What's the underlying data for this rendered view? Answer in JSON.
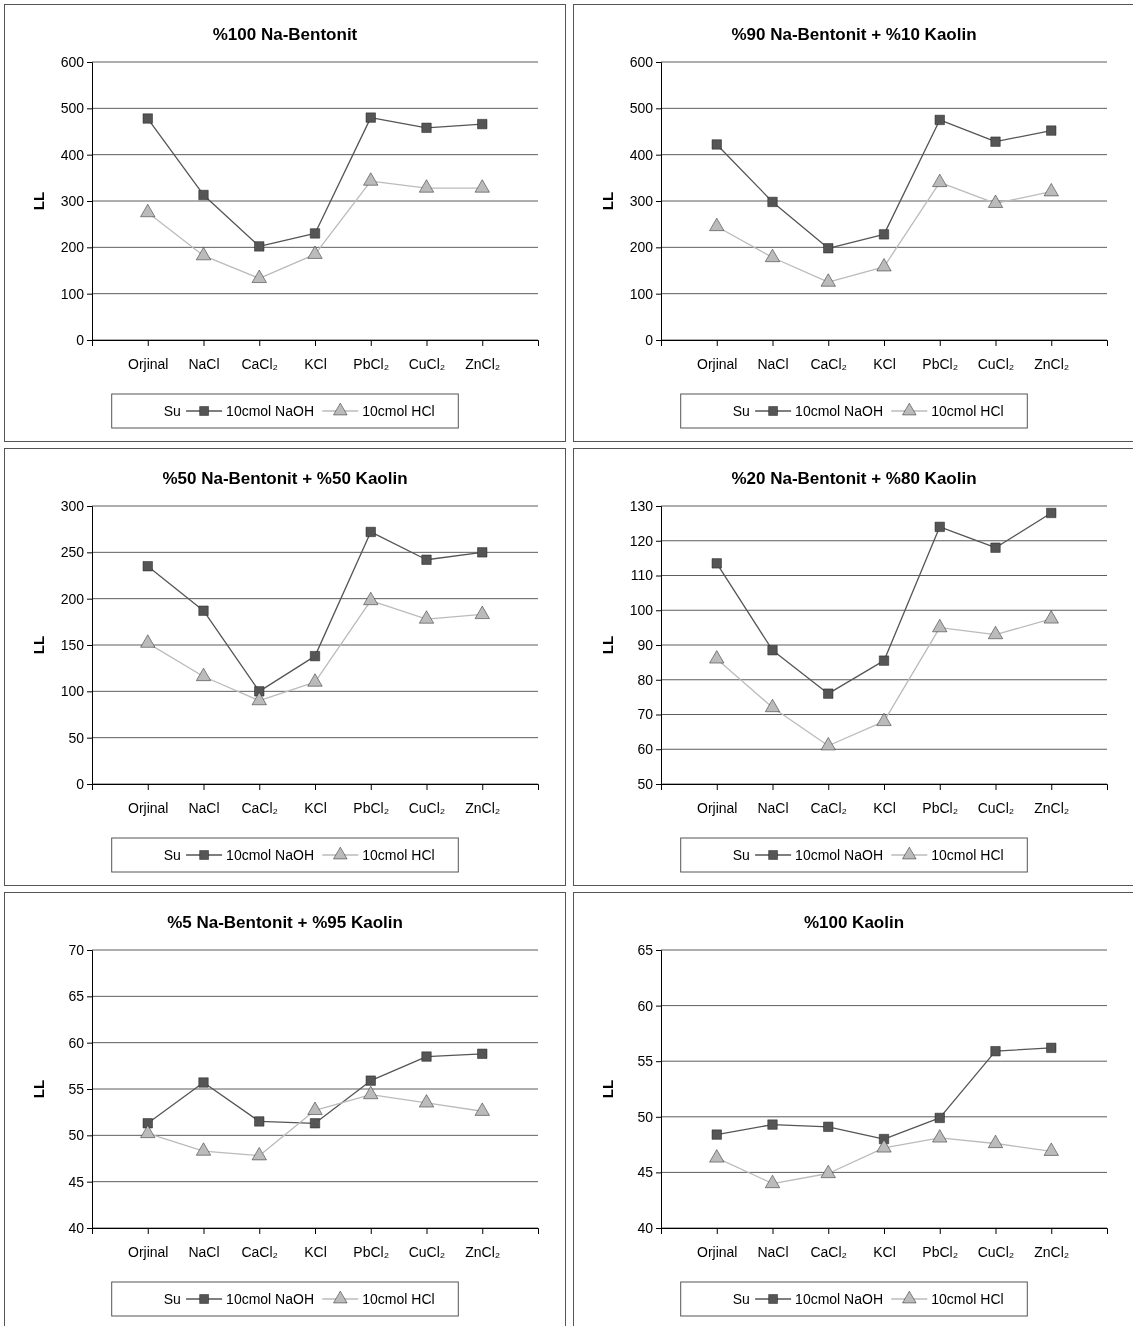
{
  "chart_data": [
    {
      "type": "line",
      "title": "%100 Na-Bentonit",
      "ylabel": "LL",
      "categories": [
        "Orjinal",
        "NaCl",
        "CaCl₂",
        "KCl",
        "PbCl₂",
        "CuCl₂",
        "ZnCl₂"
      ],
      "ylim": [
        0,
        600
      ],
      "yticks": [
        0,
        100,
        200,
        300,
        400,
        500,
        600
      ],
      "grid": "y",
      "legend": "bottom",
      "series": [
        {
          "name": "Su",
          "values": [
            null,
            null,
            null,
            null,
            null,
            null,
            null
          ]
        },
        {
          "name": "10cmol NaOH",
          "color": "#555555",
          "marker": "square",
          "values": [
            478,
            313,
            202,
            230,
            480,
            458,
            466
          ]
        },
        {
          "name": "10cmol HCl",
          "color": "#bbbbbb",
          "marker": "triangle",
          "values": [
            275,
            182,
            133,
            185,
            343,
            328,
            328
          ]
        }
      ]
    },
    {
      "type": "line",
      "title": "%90 Na-Bentonit + %10 Kaolin",
      "ylabel": "LL",
      "categories": [
        "Orjinal",
        "NaCl",
        "CaCl₂",
        "KCl",
        "PbCl₂",
        "CuCl₂",
        "ZnCl₂"
      ],
      "ylim": [
        0,
        600
      ],
      "yticks": [
        0,
        100,
        200,
        300,
        400,
        500,
        600
      ],
      "grid": "y",
      "legend": "bottom",
      "series": [
        {
          "name": "Su",
          "values": [
            null,
            null,
            null,
            null,
            null,
            null,
            null
          ]
        },
        {
          "name": "10cmol NaOH",
          "color": "#555555",
          "marker": "square",
          "values": [
            422,
            298,
            198,
            228,
            475,
            428,
            452
          ]
        },
        {
          "name": "10cmol HCl",
          "color": "#bbbbbb",
          "marker": "triangle",
          "values": [
            245,
            178,
            125,
            158,
            340,
            295,
            320
          ]
        }
      ]
    },
    {
      "type": "line",
      "title": "%50 Na-Bentonit + %50 Kaolin",
      "ylabel": "LL",
      "categories": [
        "Orjinal",
        "NaCl",
        "CaCl₂",
        "KCl",
        "PbCl₂",
        "CuCl₂",
        "ZnCl₂"
      ],
      "ylim": [
        0,
        300
      ],
      "yticks": [
        0,
        50,
        100,
        150,
        200,
        250,
        300
      ],
      "grid": "y",
      "legend": "bottom",
      "series": [
        {
          "name": "Su",
          "values": [
            null,
            null,
            null,
            null,
            null,
            null,
            null
          ]
        },
        {
          "name": "10cmol NaOH",
          "color": "#555555",
          "marker": "square",
          "values": [
            235,
            187,
            100,
            138,
            272,
            242,
            250
          ]
        },
        {
          "name": "10cmol HCl",
          "color": "#bbbbbb",
          "marker": "triangle",
          "values": [
            152,
            116,
            90,
            110,
            198,
            178,
            183
          ]
        }
      ]
    },
    {
      "type": "line",
      "title": "%20 Na-Bentonit + %80 Kaolin",
      "ylabel": "LL",
      "categories": [
        "Orjinal",
        "NaCl",
        "CaCl₂",
        "KCl",
        "PbCl₂",
        "CuCl₂",
        "ZnCl₂"
      ],
      "ylim": [
        50,
        130
      ],
      "yticks": [
        50,
        60,
        70,
        80,
        90,
        100,
        110,
        120,
        130
      ],
      "grid": "y",
      "legend": "bottom",
      "series": [
        {
          "name": "Su",
          "values": [
            null,
            null,
            null,
            null,
            null,
            null,
            null
          ]
        },
        {
          "name": "10cmol NaOH",
          "color": "#555555",
          "marker": "square",
          "values": [
            113.5,
            88.5,
            76,
            85.5,
            124,
            118,
            128
          ]
        },
        {
          "name": "10cmol HCl",
          "color": "#bbbbbb",
          "marker": "triangle",
          "values": [
            86,
            72,
            61,
            68,
            95,
            93,
            97.5
          ]
        }
      ]
    },
    {
      "type": "line",
      "title": "%5 Na-Bentonit + %95 Kaolin",
      "ylabel": "LL",
      "categories": [
        "Orjinal",
        "NaCl",
        "CaCl₂",
        "KCl",
        "PbCl₂",
        "CuCl₂",
        "ZnCl₂"
      ],
      "ylim": [
        40,
        70
      ],
      "yticks": [
        40,
        45,
        50,
        55,
        60,
        65,
        70
      ],
      "grid": "y",
      "legend": "bottom",
      "series": [
        {
          "name": "Su",
          "values": [
            null,
            null,
            null,
            null,
            null,
            null,
            null
          ]
        },
        {
          "name": "10cmol NaOH",
          "color": "#555555",
          "marker": "square",
          "values": [
            51.3,
            55.7,
            51.5,
            51.3,
            55.9,
            58.5,
            58.8
          ]
        },
        {
          "name": "10cmol HCl",
          "color": "#bbbbbb",
          "marker": "triangle",
          "values": [
            50.2,
            48.3,
            47.8,
            52.7,
            54.4,
            53.5,
            52.6
          ]
        }
      ]
    },
    {
      "type": "line",
      "title": "%100 Kaolin",
      "ylabel": "LL",
      "categories": [
        "Orjinal",
        "NaCl",
        "CaCl₂",
        "KCl",
        "PbCl₂",
        "CuCl₂",
        "ZnCl₂"
      ],
      "ylim": [
        40,
        65
      ],
      "yticks": [
        40,
        45,
        50,
        55,
        60,
        65
      ],
      "grid": "y",
      "legend": "bottom",
      "series": [
        {
          "name": "Su",
          "values": [
            null,
            null,
            null,
            null,
            null,
            null,
            null
          ]
        },
        {
          "name": "10cmol NaOH",
          "color": "#555555",
          "marker": "square",
          "values": [
            48.4,
            49.3,
            49.1,
            48.0,
            49.9,
            55.9,
            56.2
          ]
        },
        {
          "name": "10cmol HCl",
          "color": "#bbbbbb",
          "marker": "triangle",
          "values": [
            46.3,
            44.0,
            44.9,
            47.2,
            48.1,
            47.6,
            46.9
          ]
        }
      ]
    }
  ]
}
